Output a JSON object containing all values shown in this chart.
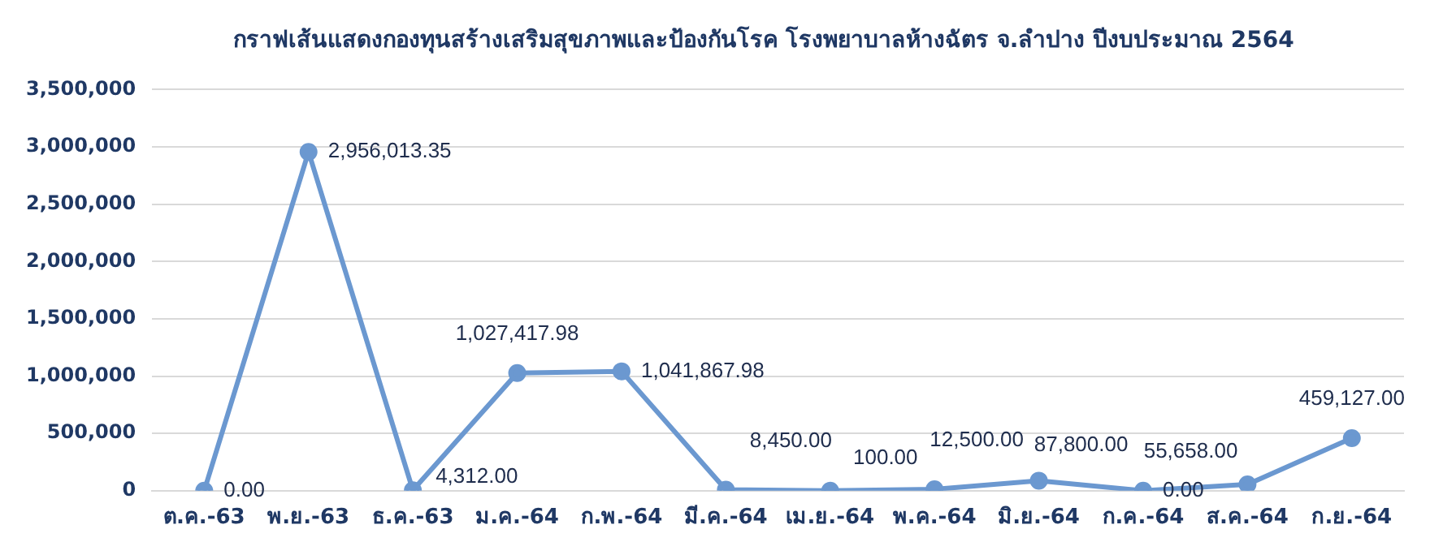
{
  "chart_data": {
    "type": "line",
    "title": "กราฟเส้นแสดงกองทุนสร้างเสริมสุขภาพและป้องกันโรค โรงพยาบาลห้างฉัตร จ.ลำปาง ปีงบประมาณ 2564",
    "categories": [
      "ต.ค.-63",
      "พ.ย.-63",
      "ธ.ค.-63",
      "ม.ค.-64",
      "ก.พ.-64",
      "มี.ค.-64",
      "เม.ย.-64",
      "พ.ค.-64",
      "มิ.ย.-64",
      "ก.ค.-64",
      "ส.ค.-64",
      "ก.ย.-64"
    ],
    "series": [
      {
        "color": "#6b98d0",
        "values": [
          0,
          2956013.35,
          4312,
          1027417.98,
          1041867.98,
          8450,
          100,
          12500,
          87800,
          0,
          55658,
          459127
        ],
        "value_labels": [
          "0.00",
          "2,956,013.35",
          "4,312.00",
          "1,027,417.98",
          "1,041,867.98",
          "8,450.00",
          "100.00",
          "12,500.00",
          "87,800.00",
          "0.00",
          "55,658.00",
          "459,127.00"
        ]
      }
    ],
    "ylim": [
      0,
      3500000
    ],
    "yticks": [
      0,
      {
        "value": 500000,
        "label": "500,000"
      },
      {
        "value": 1000000,
        "label": "1,000,000"
      },
      {
        "value": 1500000,
        "label": "1,500,000"
      },
      {
        "value": 2000000,
        "label": "2,000,000"
      },
      {
        "value": 2500000,
        "label": "2,500,000"
      },
      {
        "value": 3000000,
        "label": "3,000,000"
      },
      {
        "value": 3500000,
        "label": "3,500,000"
      }
    ],
    "grid": "y",
    "legend": false,
    "marker": "circle",
    "line_style": "solid"
  }
}
